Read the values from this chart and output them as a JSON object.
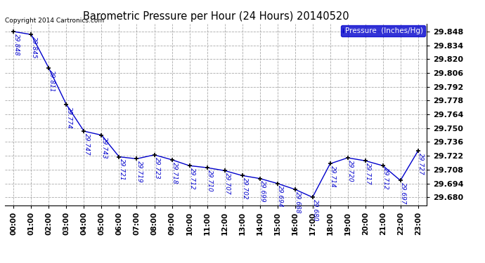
{
  "title": "Barometric Pressure per Hour (24 Hours) 20140520",
  "copyright": "Copyright 2014 Cartronics.com",
  "legend_label": "Pressure  (Inches/Hg)",
  "hours": [
    0,
    1,
    2,
    3,
    4,
    5,
    6,
    7,
    8,
    9,
    10,
    11,
    12,
    13,
    14,
    15,
    16,
    17,
    18,
    19,
    20,
    21,
    22,
    23
  ],
  "pressures": [
    29.848,
    29.845,
    29.811,
    29.774,
    29.747,
    29.743,
    29.721,
    29.719,
    29.723,
    29.718,
    29.712,
    29.71,
    29.707,
    29.702,
    29.699,
    29.694,
    29.688,
    29.68,
    29.714,
    29.72,
    29.717,
    29.712,
    29.697,
    29.727
  ],
  "line_color": "#0000cc",
  "marker_color": "#000000",
  "bg_color": "#ffffff",
  "grid_color": "#aaaaaa",
  "title_color": "#000000",
  "label_color": "#0000cc",
  "yticks": [
    29.68,
    29.694,
    29.708,
    29.722,
    29.736,
    29.75,
    29.764,
    29.778,
    29.792,
    29.806,
    29.82,
    29.834,
    29.848
  ],
  "ylim_min": 29.672,
  "ylim_max": 29.856,
  "legend_bg": "#0000cc",
  "legend_text_color": "#ffffff",
  "figwidth": 6.9,
  "figheight": 3.75,
  "dpi": 100
}
